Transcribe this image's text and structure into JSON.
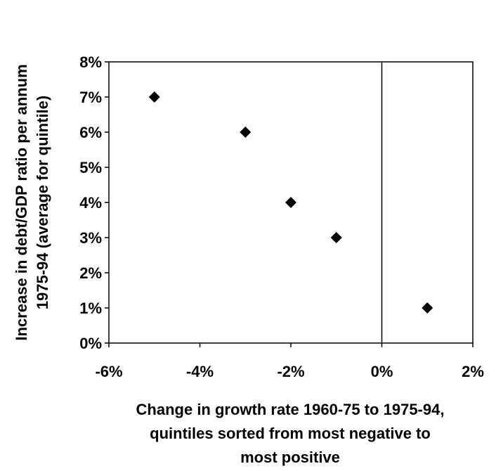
{
  "chart_data": {
    "type": "scatter",
    "title": "",
    "xlabel": [
      "Change in growth rate 1960-75 to 1975-94,",
      "quintiles sorted from most negative to",
      "most positive"
    ],
    "ylabel": [
      "Increase in debt/GDP ratio per annum",
      "1975-94 (average for quintile)"
    ],
    "xlim": [
      -0.06,
      0.02
    ],
    "ylim": [
      0,
      0.08
    ],
    "x_ticks": [
      -0.06,
      -0.04,
      -0.02,
      0,
      0.02
    ],
    "x_tick_labels": [
      "-6%",
      "-4%",
      "-2%",
      "0%",
      "2%"
    ],
    "y_ticks": [
      0,
      0.01,
      0.02,
      0.03,
      0.04,
      0.05,
      0.06,
      0.07,
      0.08
    ],
    "y_tick_labels": [
      "0%",
      "1%",
      "2%",
      "3%",
      "4%",
      "5%",
      "6%",
      "7%",
      "8%"
    ],
    "grid": false,
    "marker": "diamond",
    "marker_color": "#000000",
    "points": [
      {
        "x": -0.05,
        "y": 0.07
      },
      {
        "x": -0.03,
        "y": 0.06
      },
      {
        "x": -0.02,
        "y": 0.04
      },
      {
        "x": -0.01,
        "y": 0.03
      },
      {
        "x": 0.01,
        "y": 0.01
      }
    ]
  }
}
